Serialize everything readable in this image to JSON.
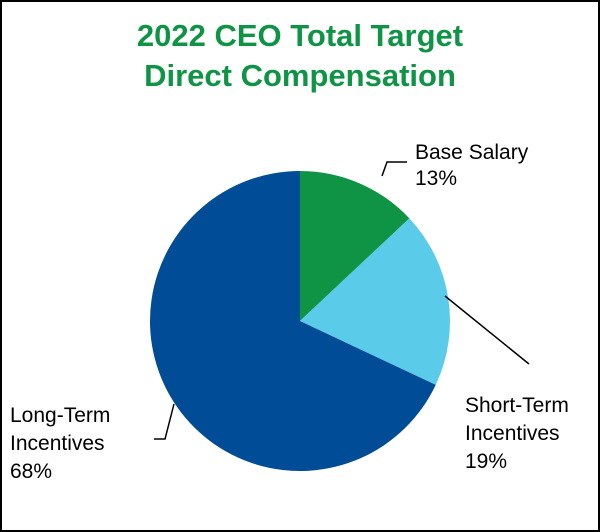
{
  "chart_data": {
    "type": "pie",
    "title": [
      "2022 CEO Total Target",
      "Direct Compensation"
    ],
    "title_color": "#0E9444",
    "slices": [
      {
        "name": [
          "Base Salary"
        ],
        "value": 13,
        "value_label": "13%",
        "color": "#0E9444",
        "leader_color": "#000000"
      },
      {
        "name": [
          "Short-Term",
          "Incentives"
        ],
        "value": 19,
        "value_label": "19%",
        "color": "#5BCBEA",
        "leader_color": "#000000"
      },
      {
        "name": [
          "Long-Term",
          "Incentives"
        ],
        "value": 68,
        "value_label": "68%",
        "color": "#004C97",
        "leader_color": "#000000"
      }
    ],
    "start_angle_deg": 0,
    "direction": "clockwise",
    "legend": "none"
  }
}
